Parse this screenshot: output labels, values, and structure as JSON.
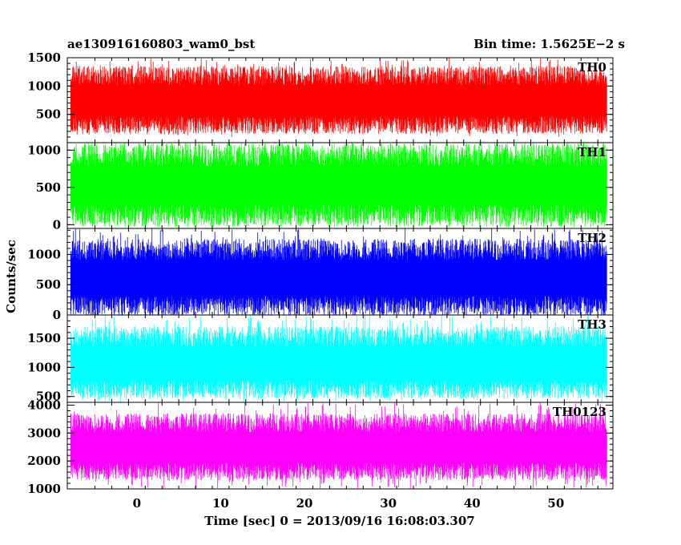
{
  "header": {
    "title": "ae130916160803_wam0_bst",
    "bin_time": "Bin time: 1.5625E−2 s"
  },
  "chart_data": {
    "type": "line",
    "title": "ae130916160803_wam0_bst",
    "bin_time": "Bin time: 1.5625E−2 s",
    "xlabel": "Time [sec] 0 = 2013/09/16 16:08:03.307",
    "ylabel": "Counts/sec",
    "xlim": [
      -8.3,
      56.8
    ],
    "data_x_range": [
      -7.9,
      56.1
    ],
    "x_ticks": [
      0,
      10,
      20,
      30,
      40,
      50
    ],
    "grid": false,
    "legend": "none",
    "panels": [
      {
        "name": "TH0",
        "color": "#ff0000",
        "ylim": [
          1,
          1500
        ],
        "y_ticks": [
          500,
          1000,
          1500
        ],
        "typical_range": [
          250,
          1250
        ],
        "mean": 730,
        "min_excursion": 100,
        "max_excursion": 1500
      },
      {
        "name": "TH1",
        "color": "#00ff00",
        "ylim": [
          -50,
          1100
        ],
        "y_ticks": [
          0,
          500,
          1000
        ],
        "typical_range": [
          60,
          1000
        ],
        "mean": 520,
        "min_excursion": 0,
        "max_excursion": 1100
      },
      {
        "name": "TH2",
        "color": "#0000ff",
        "ylim": [
          0,
          1430
        ],
        "y_ticks": [
          0,
          500,
          1000
        ],
        "typical_range": [
          80,
          1150
        ],
        "mean": 600,
        "min_excursion": 0,
        "max_excursion": 1430
      },
      {
        "name": "TH3",
        "color": "#00ffff",
        "ylim": [
          400,
          1900
        ],
        "y_ticks": [
          500,
          1000,
          1500
        ],
        "typical_range": [
          560,
          1600
        ],
        "mean": 1050,
        "min_excursion": 400,
        "max_excursion": 1900
      },
      {
        "name": "TH0123",
        "color": "#ff00ff",
        "ylim": [
          1000,
          4100
        ],
        "y_ticks": [
          1000,
          2000,
          3000,
          4000
        ],
        "typical_range": [
          1500,
          3500
        ],
        "mean": 2450,
        "min_excursion": 1000,
        "max_excursion": 4100
      }
    ]
  }
}
